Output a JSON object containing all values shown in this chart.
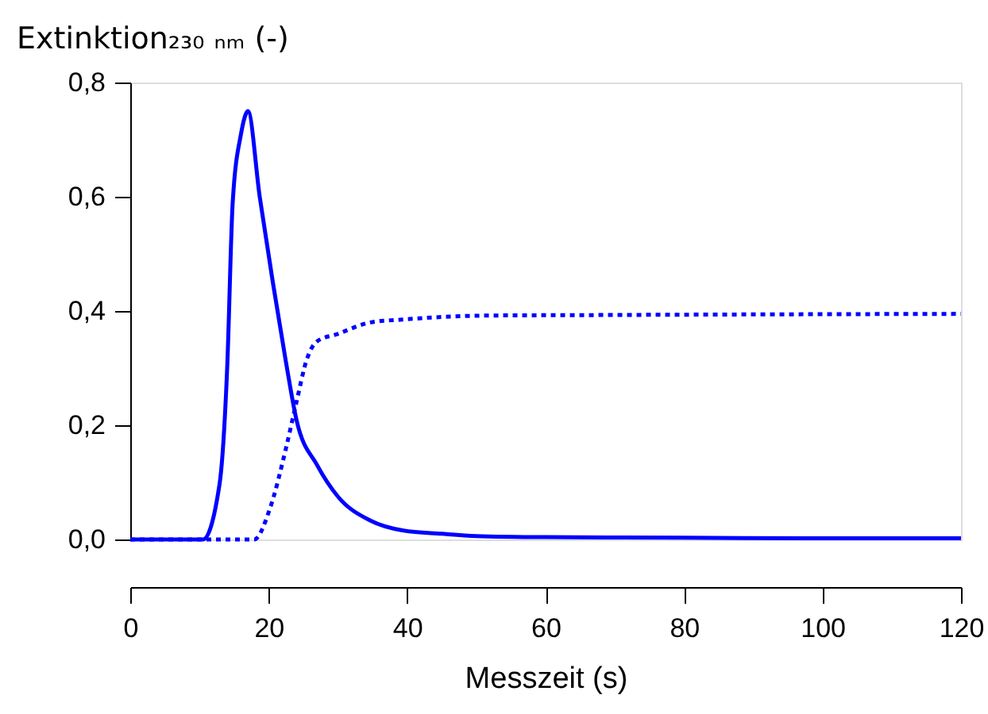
{
  "chart_data": {
    "type": "line",
    "xlabel": "Messzeit (s)",
    "ylabel": "Extinktion₂₃₀ ₙₘ (-)",
    "xlim": [
      0,
      120
    ],
    "xticks": [
      0,
      20,
      40,
      60,
      80,
      100,
      120
    ],
    "ylim": [
      0,
      0.8
    ],
    "yticks": [
      {
        "value": 0,
        "label": "0,0"
      },
      {
        "value": 0.2,
        "label": "0,2"
      },
      {
        "value": 0.4,
        "label": "0,4"
      },
      {
        "value": 0.6,
        "label": "0,6"
      },
      {
        "value": 0.8,
        "label": "0,8"
      }
    ],
    "grid": false,
    "marker": "none",
    "series": [
      {
        "color": "#0000ff",
        "line_style": "solid",
        "x": [
          0,
          10.5,
          12.9,
          14,
          14.8,
          16,
          16.7,
          17,
          18.7,
          20.6,
          22.5,
          24,
          27,
          30,
          34.7,
          39.3,
          45,
          50,
          60,
          80,
          100,
          120
        ],
        "values": [
          0,
          0,
          0.097,
          0.3,
          0.59,
          0.71,
          0.745,
          0.75,
          0.6,
          0.45,
          0.31,
          0.21,
          0.13,
          0.075,
          0.033,
          0.016,
          0.01,
          0.006,
          0.004,
          0.003,
          0.002,
          0.002
        ]
      },
      {
        "color": "#0000ff",
        "line_style": "dotted",
        "x": [
          0,
          11,
          14,
          17.9,
          20.2,
          22.5,
          24,
          25.5,
          27,
          30,
          34.7,
          39.3,
          51.6,
          70,
          90,
          120
        ],
        "values": [
          0,
          0,
          0,
          0,
          0.055,
          0.16,
          0.24,
          0.315,
          0.347,
          0.36,
          0.38,
          0.385,
          0.392,
          0.393,
          0.394,
          0.395
        ]
      }
    ]
  }
}
